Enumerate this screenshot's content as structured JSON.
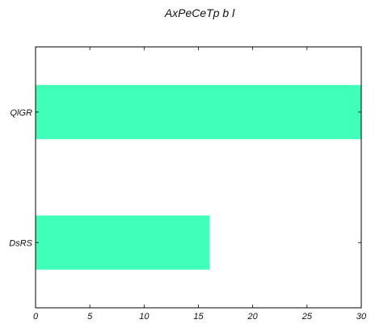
{
  "chart_data": {
    "type": "bar",
    "orientation": "horizontal",
    "title": "AxPeCeTp b l",
    "xlabel": "",
    "ylabel": "",
    "categories": [
      "DsRS",
      "QlGR"
    ],
    "values": [
      16,
      30
    ],
    "xlim": [
      0,
      30
    ],
    "xticks": [
      0,
      5,
      10,
      15,
      20,
      25,
      30
    ],
    "bar_color": "#40ffb8",
    "axis_color": "#000000",
    "grid": false,
    "legend": "none"
  }
}
